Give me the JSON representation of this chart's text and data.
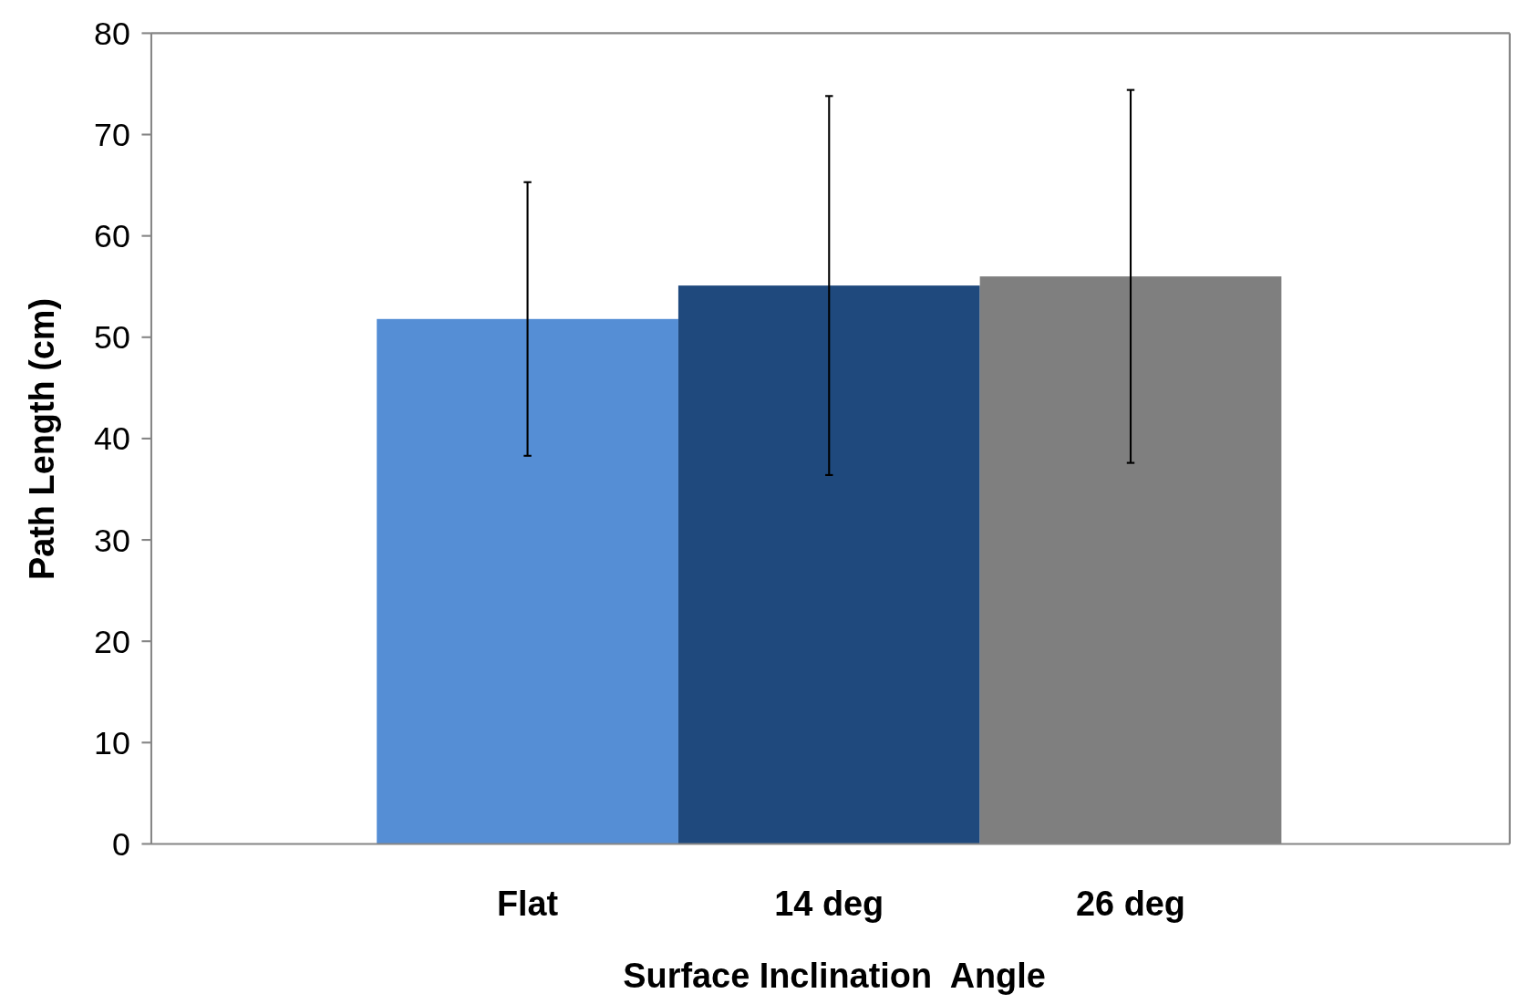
{
  "chart_data": {
    "type": "bar",
    "xlabel": "Surface Inclination  Angle",
    "ylabel": "Path Length (cm)",
    "categories": [
      "Flat",
      "14 deg",
      "26 deg"
    ],
    "values": [
      51.8,
      55.1,
      56.0
    ],
    "colors": [
      "#558ed5",
      "#1f497d",
      "#7f7f7f"
    ],
    "errors": [
      13.5,
      18.7,
      18.4
    ],
    "ylim": [
      0,
      80
    ],
    "yticks": [
      0,
      10,
      20,
      30,
      40,
      50,
      60,
      70,
      80
    ],
    "grid": false
  }
}
